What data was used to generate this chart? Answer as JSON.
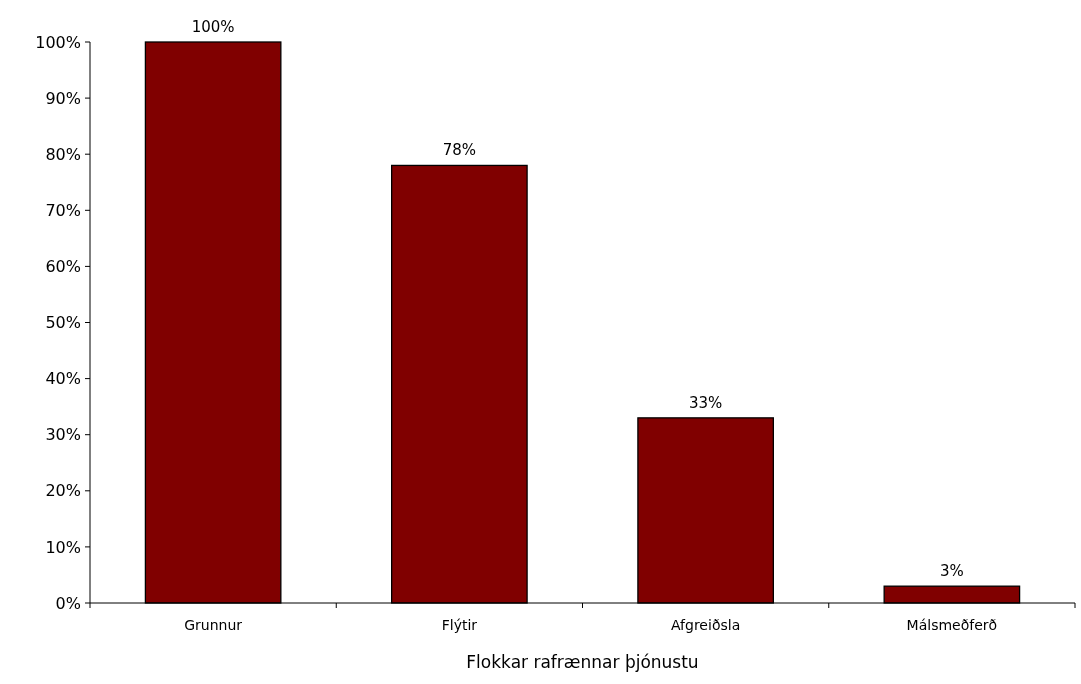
{
  "chart_data": {
    "type": "bar",
    "xlabel": "Flokkar rafrænnar þjónustu",
    "categories": [
      "Grunnur",
      "Flýtir",
      "Afgreiðsla",
      "Málsmeðferð"
    ],
    "values": [
      100,
      78,
      33,
      3
    ],
    "value_labels": [
      "100%",
      "78%",
      "33%",
      "3%"
    ],
    "color": "#800000",
    "ylim": [
      0,
      100
    ],
    "yticks": [
      {
        "value": 0,
        "label": "0%"
      },
      {
        "value": 10,
        "label": "10%"
      },
      {
        "value": 20,
        "label": "20%"
      },
      {
        "value": 30,
        "label": "30%"
      },
      {
        "value": 40,
        "label": "40%"
      },
      {
        "value": 50,
        "label": "50%"
      },
      {
        "value": 60,
        "label": "60%"
      },
      {
        "value": 70,
        "label": "70%"
      },
      {
        "value": 80,
        "label": "80%"
      },
      {
        "value": 90,
        "label": "90%"
      },
      {
        "value": 100,
        "label": "100%"
      }
    ]
  }
}
